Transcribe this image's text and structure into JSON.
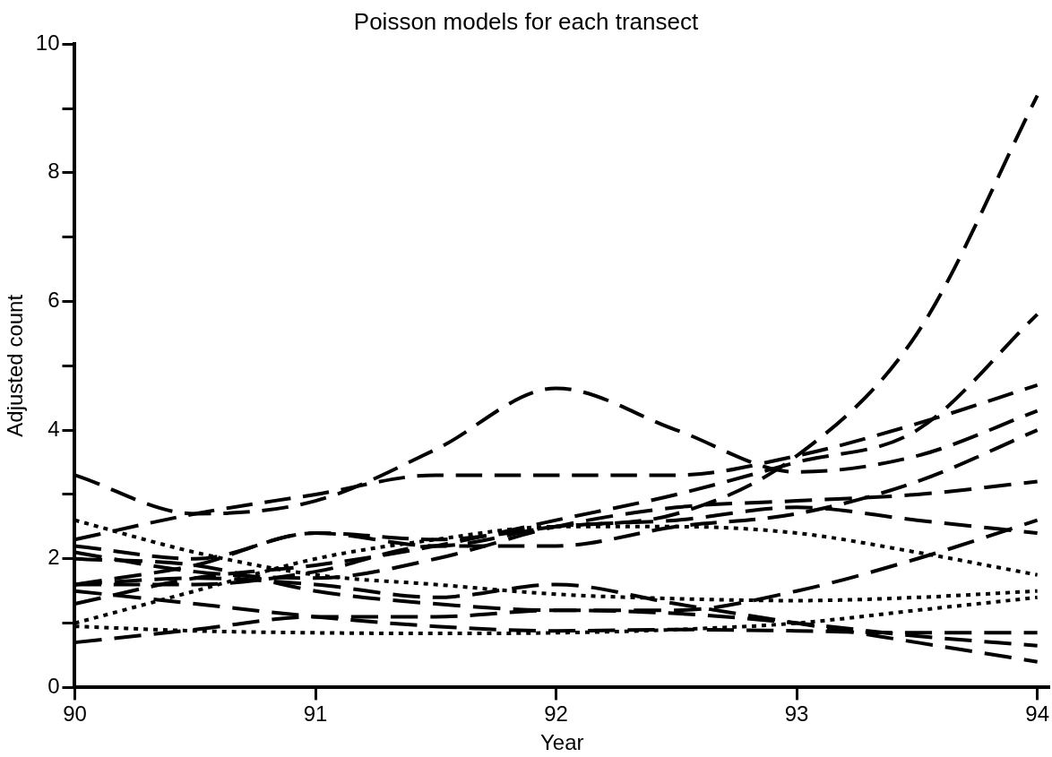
{
  "chart_data": {
    "type": "line",
    "title": "Poisson models for each transect",
    "xlabel": "Year",
    "ylabel": "Adjusted count",
    "x": [
      90,
      90.5,
      91,
      91.5,
      92,
      92.5,
      93,
      93.5,
      94
    ],
    "xlim": [
      90,
      94.05
    ],
    "xticks": [
      90,
      91,
      92,
      93,
      94
    ],
    "ylim": [
      0,
      10
    ],
    "yticks": [
      0,
      {
        "value": 1,
        "label": null
      },
      2,
      {
        "value": 3,
        "label": null
      },
      4,
      {
        "value": 5,
        "label": null
      },
      6,
      {
        "value": 7,
        "label": null
      },
      8,
      {
        "value": 9,
        "label": null
      },
      10
    ],
    "grid": false,
    "legend": false,
    "marker": "none",
    "line_style": "dashed",
    "series": [
      {
        "color": "#000000",
        "values": [
          3.3,
          2.7,
          2.9,
          3.7,
          4.65,
          4.0,
          3.35,
          3.6,
          4.3
        ]
      },
      {
        "color": "#000000",
        "values": [
          2.2,
          2.0,
          2.4,
          2.3,
          2.5,
          2.7,
          3.6,
          5.5,
          9.2
        ]
      },
      {
        "color": "#000000",
        "values": [
          1.3,
          1.7,
          1.9,
          2.2,
          2.6,
          3.0,
          3.5,
          4.0,
          5.8
        ]
      },
      {
        "color": "#000000",
        "values": [
          2.3,
          2.7,
          3.0,
          3.3,
          3.3,
          3.3,
          3.6,
          4.1,
          4.7
        ]
      },
      {
        "color": "#000000",
        "values": [
          1.6,
          1.6,
          1.8,
          2.2,
          2.2,
          2.5,
          2.7,
          3.2,
          4.0
        ]
      },
      {
        "color": "#000000",
        "values": [
          2.1,
          1.8,
          1.7,
          2.0,
          2.5,
          2.8,
          2.9,
          3.0,
          3.2
        ]
      },
      {
        "color": "#000000",
        "values": [
          1.6,
          1.9,
          2.4,
          2.2,
          2.5,
          2.6,
          2.8,
          2.6,
          2.4
        ]
      },
      {
        "color": "#000000",
        "values": [
          2.0,
          1.9,
          1.5,
          1.3,
          1.2,
          1.2,
          1.5,
          2.0,
          2.6
        ]
      },
      {
        "color": "#000000",
        "line_style": "dotted",
        "values": [
          2.6,
          2.1,
          1.75,
          1.6,
          1.45,
          1.38,
          1.35,
          1.4,
          1.5
        ]
      },
      {
        "color": "#000000",
        "line_style": "dotted",
        "values": [
          0.95,
          0.88,
          0.85,
          0.84,
          0.85,
          0.9,
          1.0,
          1.2,
          1.4
        ]
      },
      {
        "color": "#000000",
        "line_style": "dotted",
        "values": [
          1.0,
          1.5,
          2.0,
          2.3,
          2.5,
          2.5,
          2.4,
          2.1,
          1.75
        ]
      },
      {
        "color": "#000000",
        "values": [
          1.6,
          1.7,
          1.6,
          1.4,
          1.6,
          1.3,
          1.0,
          0.7,
          0.4
        ]
      },
      {
        "color": "#000000",
        "values": [
          0.7,
          0.9,
          1.1,
          1.1,
          1.2,
          1.15,
          1.0,
          0.8,
          0.65
        ]
      },
      {
        "color": "#000000",
        "values": [
          1.5,
          1.3,
          1.1,
          0.95,
          0.88,
          0.9,
          0.88,
          0.85,
          0.85
        ]
      }
    ]
  }
}
